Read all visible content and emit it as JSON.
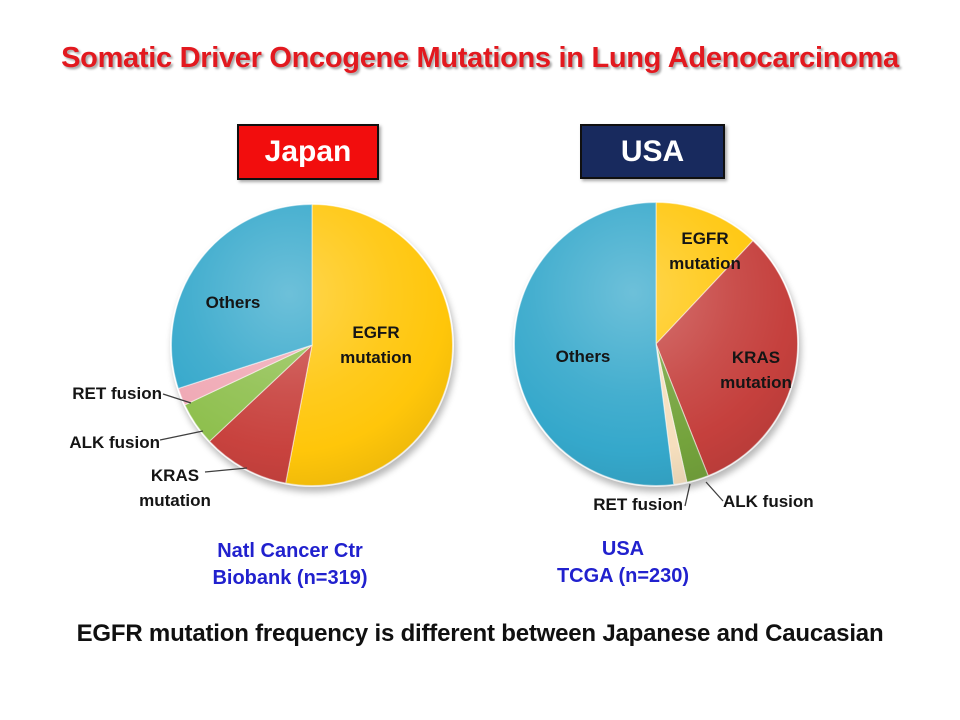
{
  "slide": {
    "title": "Somatic Driver Oncogene Mutations in Lung Adenocarcinoma",
    "footer": "EGFR mutation frequency is different between Japanese and Caucasian"
  },
  "panels": [
    {
      "region_label": "Japan",
      "header_bg": "#F20D0D",
      "caption": [
        "Natl Cancer Ctr",
        "Biobank (n=319)"
      ]
    },
    {
      "region_label": "USA",
      "header_bg": "#182A5E",
      "caption": [
        "USA",
        "TCGA (n=230)"
      ]
    }
  ],
  "colors": {
    "title_text": "#E2191F",
    "caption_text": "#2121CE",
    "footer_text": "#101010",
    "pie_label_text": "#151515",
    "leader_line": "#3F3F3F"
  },
  "chart_data": [
    {
      "type": "pie",
      "group": "Japan",
      "source_caption": "Natl Cancer Ctr Biobank (n=319)",
      "n": 319,
      "labels": [
        "EGFR mutation",
        "KRAS mutation",
        "ALK fusion",
        "RET fusion",
        "Others"
      ],
      "values": [
        53,
        10,
        5,
        2,
        30
      ],
      "unit": "percent (estimated from slice angles, no numeric labels shown)",
      "colors": [
        "#FFC60A",
        "#C8423E",
        "#8FC04F",
        "#F0A9B5",
        "#35A8CB"
      ],
      "start_angle_deg": 0,
      "direction": "clockwise",
      "legend_position": "labels on/beside slices"
    },
    {
      "type": "pie",
      "group": "USA",
      "source_caption": "USA TCGA (n=230)",
      "n": 230,
      "labels": [
        "EGFR mutation",
        "KRAS mutation",
        "ALK fusion",
        "RET fusion",
        "Others"
      ],
      "values": [
        12,
        32,
        2.5,
        1.5,
        52
      ],
      "unit": "percent (estimated from slice angles, no numeric labels shown)",
      "colors": [
        "#FFC60A",
        "#C5403D",
        "#74A33C",
        "#F6DFBE",
        "#35A8CB"
      ],
      "start_angle_deg": 0,
      "direction": "clockwise",
      "legend_position": "labels on/beside slices"
    }
  ]
}
